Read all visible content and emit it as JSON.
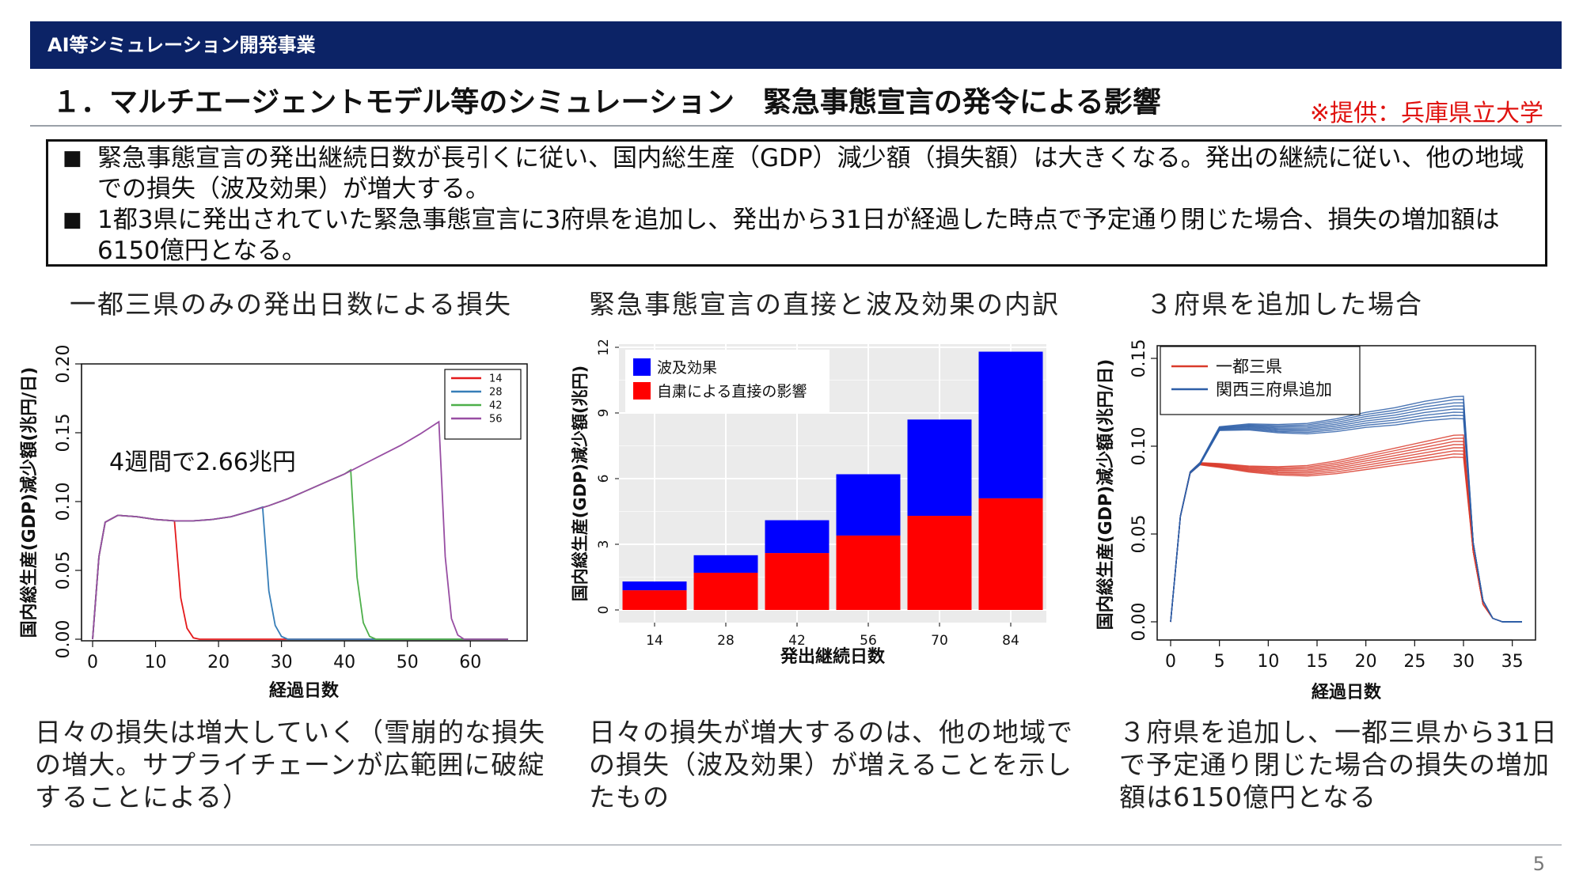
{
  "header": {
    "title": "AI等シミュレーション開発事業"
  },
  "title": "１．マルチエージェントモデル等のシミュレーション　緊急事態宣言の発令による影響",
  "credit": "※提供：兵庫県立大学",
  "summary": {
    "bullet_char": "■",
    "items": [
      "緊急事態宣言の発出継続日数が長引くに従い、国内総生産（GDP）減少額（損失額）は大きくなる。発出の継続に従い、他の地域での損失（波及効果）が増大する。",
      "1都3県に発出されていた緊急事態宣言に3府県を追加し、発出から31日が経過した時点で予定通り閉じた場合、損失の増加額は6150億円となる。"
    ]
  },
  "panels": {
    "left": {
      "title": "一都三県のみの発出日数による損失",
      "caption": "日々の損失は増大していく（雪崩的な損失の増大。サプライチェーンが広範囲に破綻することによる）"
    },
    "middle": {
      "title": "緊急事態宣言の直接と波及効果の内訳",
      "caption": "日々の損失が増大するのは、他の地域での損失（波及効果）が増えることを示したもの"
    },
    "right": {
      "title": "３府県を追加した場合",
      "caption": "３府県を追加し、一都三県から31日で予定通り閉じた場合の損失の増加額は6150億円となる"
    }
  },
  "chart_data": [
    {
      "type": "line",
      "xlabel": "経過日数",
      "ylabel": "国内総生産(GDP)減少額(兆円/日)",
      "xlim": [
        0,
        66
      ],
      "ylim": [
        0,
        0.2
      ],
      "xticks": [
        "0",
        "10",
        "20",
        "30",
        "40",
        "50",
        "60"
      ],
      "yticks": [
        "0.00",
        "0.05",
        "0.10",
        "0.15",
        "0.20"
      ],
      "legend_position": "top-right",
      "annotation": "4週間で2.66兆円",
      "series": [
        {
          "name": "14",
          "color": "#e41a1c",
          "x": [
            0,
            1,
            2,
            4,
            7,
            10,
            13,
            14,
            15,
            16,
            17,
            66
          ],
          "y": [
            0,
            0.06,
            0.085,
            0.09,
            0.089,
            0.087,
            0.086,
            0.03,
            0.008,
            0.001,
            0,
            0
          ]
        },
        {
          "name": "28",
          "color": "#377eb8",
          "x": [
            0,
            1,
            2,
            4,
            7,
            10,
            13,
            16,
            19,
            22,
            25,
            27,
            28,
            29,
            30,
            31,
            66
          ],
          "y": [
            0,
            0.06,
            0.085,
            0.09,
            0.089,
            0.087,
            0.086,
            0.086,
            0.087,
            0.089,
            0.093,
            0.096,
            0.035,
            0.01,
            0.002,
            0,
            0
          ]
        },
        {
          "name": "42",
          "color": "#4daf4a",
          "x": [
            0,
            1,
            2,
            4,
            7,
            10,
            13,
            16,
            19,
            22,
            25,
            28,
            31,
            34,
            37,
            40,
            41,
            42,
            43,
            44,
            45,
            66
          ],
          "y": [
            0,
            0.06,
            0.085,
            0.09,
            0.089,
            0.087,
            0.086,
            0.086,
            0.087,
            0.089,
            0.093,
            0.097,
            0.102,
            0.108,
            0.114,
            0.12,
            0.123,
            0.045,
            0.012,
            0.002,
            0,
            0
          ]
        },
        {
          "name": "56",
          "color": "#984ea3",
          "x": [
            0,
            1,
            2,
            4,
            7,
            10,
            13,
            16,
            19,
            22,
            25,
            28,
            31,
            34,
            37,
            40,
            43,
            46,
            49,
            52,
            55,
            56,
            57,
            58,
            59,
            66
          ],
          "y": [
            0,
            0.06,
            0.085,
            0.09,
            0.089,
            0.087,
            0.086,
            0.086,
            0.087,
            0.089,
            0.093,
            0.097,
            0.102,
            0.108,
            0.114,
            0.12,
            0.127,
            0.134,
            0.141,
            0.149,
            0.158,
            0.06,
            0.015,
            0.003,
            0,
            0
          ]
        }
      ]
    },
    {
      "type": "bar",
      "stacked": true,
      "xlabel": "発出継続日数",
      "ylabel": "国内総生産(GDP)減少額(兆円)",
      "categories": [
        "14",
        "28",
        "42",
        "56",
        "70",
        "84"
      ],
      "ylim": [
        0,
        12
      ],
      "yticks": [
        "0",
        "3",
        "6",
        "9",
        "12"
      ],
      "legend_position": "top-left",
      "series": [
        {
          "name": "自粛による直接の影響",
          "color": "#ff0000",
          "values": [
            0.9,
            1.7,
            2.6,
            3.4,
            4.3,
            5.1
          ]
        },
        {
          "name": "波及効果",
          "color": "#0000ff",
          "values": [
            0.4,
            0.8,
            1.5,
            2.8,
            4.4,
            6.7
          ]
        }
      ]
    },
    {
      "type": "line",
      "xlabel": "経過日数",
      "ylabel": "国内総生産(GDP)減少額(兆円/日)",
      "xlim": [
        0,
        36
      ],
      "ylim": [
        0,
        0.15
      ],
      "xticks": [
        "0",
        "5",
        "10",
        "15",
        "20",
        "25",
        "30",
        "35"
      ],
      "yticks": [
        "0.00",
        "0.05",
        "0.10",
        "0.15"
      ],
      "legend_position": "top-left",
      "series": [
        {
          "name": "一都三県",
          "color": "#d93b2b",
          "x": [
            0,
            0.5,
            1,
            2,
            3,
            5,
            8,
            11,
            14,
            17,
            20,
            23,
            26,
            29,
            30,
            31,
            32,
            33,
            34,
            36
          ],
          "y": [
            0,
            0.03,
            0.06,
            0.085,
            0.09,
            0.089,
            0.087,
            0.086,
            0.086,
            0.088,
            0.091,
            0.094,
            0.097,
            0.1,
            0.1,
            0.04,
            0.01,
            0.002,
            0,
            0
          ]
        },
        {
          "name": "関西三府県追加",
          "color": "#2e5fa8",
          "x": [
            0,
            0.5,
            1,
            2,
            3,
            4,
            5,
            8,
            11,
            14,
            17,
            20,
            23,
            26,
            29,
            30,
            31,
            32,
            33,
            34,
            36
          ],
          "y": [
            0,
            0.03,
            0.06,
            0.085,
            0.09,
            0.1,
            0.11,
            0.111,
            0.11,
            0.11,
            0.112,
            0.115,
            0.117,
            0.12,
            0.122,
            0.122,
            0.045,
            0.012,
            0.002,
            0,
            0
          ]
        }
      ]
    }
  ],
  "page_number": "5"
}
